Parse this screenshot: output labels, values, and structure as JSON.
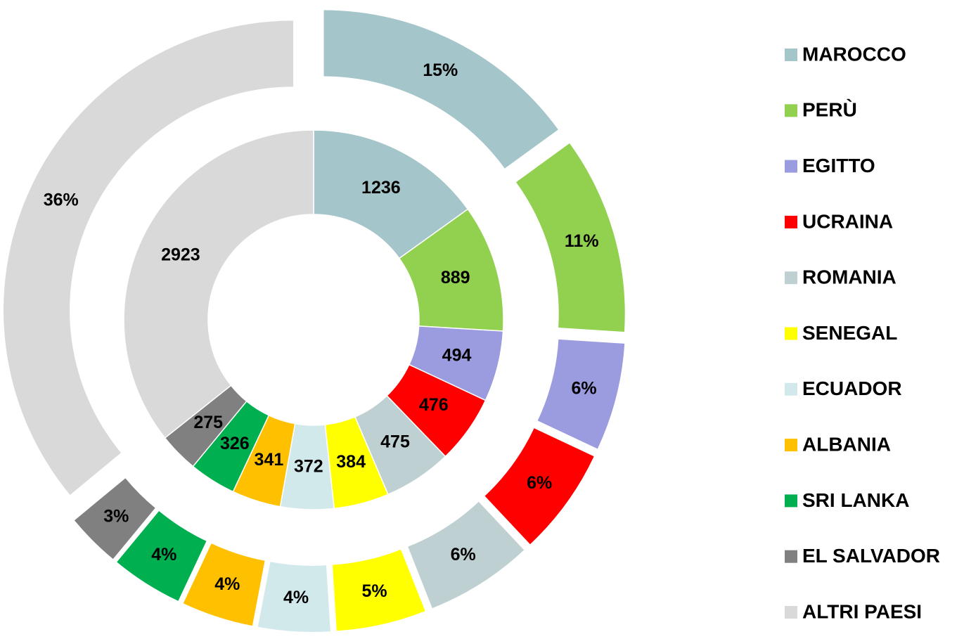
{
  "chart_data": {
    "type": "donut",
    "categories": [
      "MAROCCO",
      "PERÙ",
      "EGITTO",
      "UCRAINA",
      "ROMANIA",
      "SENEGAL",
      "ECUADOR",
      "ALBANIA",
      "SRI LANKA",
      "EL SALVADOR",
      "ALTRI PAESI"
    ],
    "colors": [
      "#a4c5c9",
      "#92d050",
      "#9b9bdf",
      "#ff0000",
      "#bfd0d2",
      "#ffff00",
      "#d2e9ec",
      "#ffc000",
      "#00b050",
      "#808080",
      "#d9d9d9"
    ],
    "series": [
      {
        "values": [
          1236,
          889,
          494,
          476,
          475,
          384,
          372,
          341,
          326,
          275,
          2923
        ]
      },
      {
        "values": [
          15,
          11,
          6,
          6,
          6,
          5,
          4,
          4,
          4,
          3,
          36
        ],
        "value_labels": [
          "15%",
          "11%",
          "6%",
          "6%",
          "6%",
          "5%",
          "4%",
          "4%",
          "4%",
          "3%",
          "36%"
        ]
      }
    ],
    "legend": "right"
  }
}
